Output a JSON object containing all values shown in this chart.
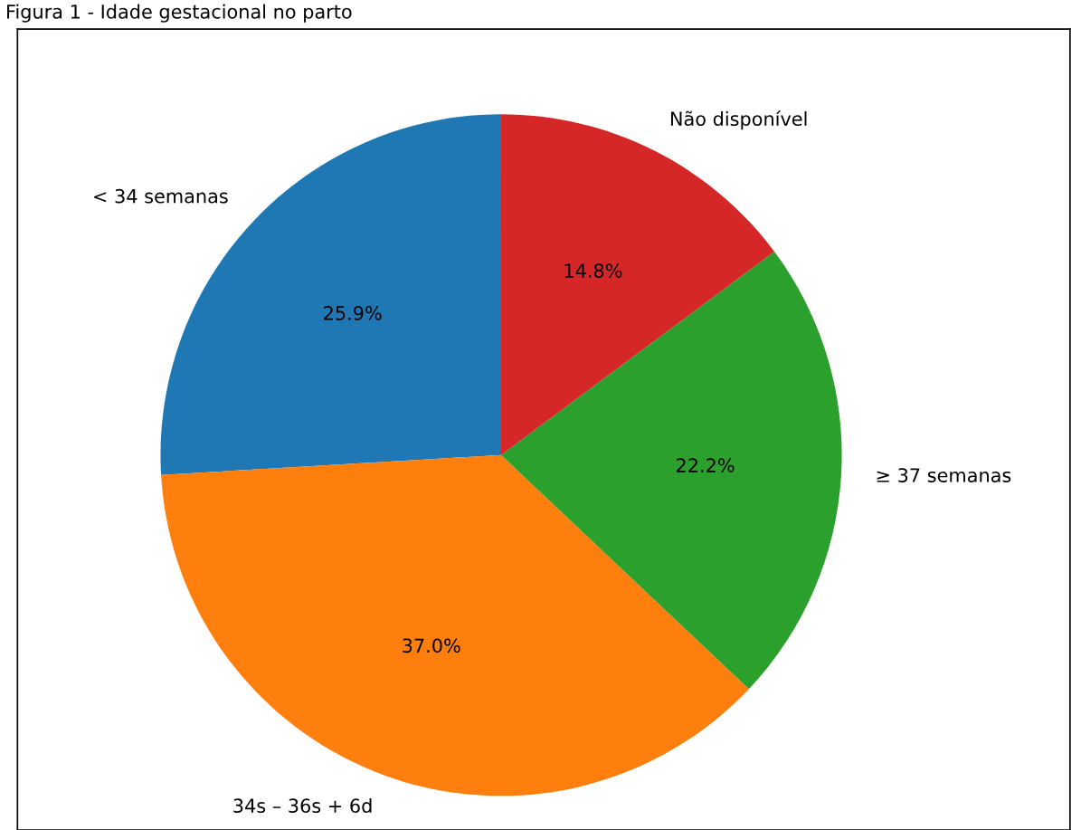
{
  "chart_data": {
    "type": "pie",
    "title": "Figura 1 - Idade gestacional no parto",
    "categories": [
      "< 34 semanas",
      "34s – 36s + 6d",
      "≥ 37 semanas",
      "Não disponível"
    ],
    "values": [
      25.9,
      37.0,
      22.2,
      14.8
    ],
    "colors": [
      "#1f77b4",
      "#ff7f0e",
      "#2ca02c",
      "#d62728"
    ],
    "value_labels": [
      "25.9%",
      "37.0%",
      "22.2%",
      "14.8%"
    ]
  }
}
